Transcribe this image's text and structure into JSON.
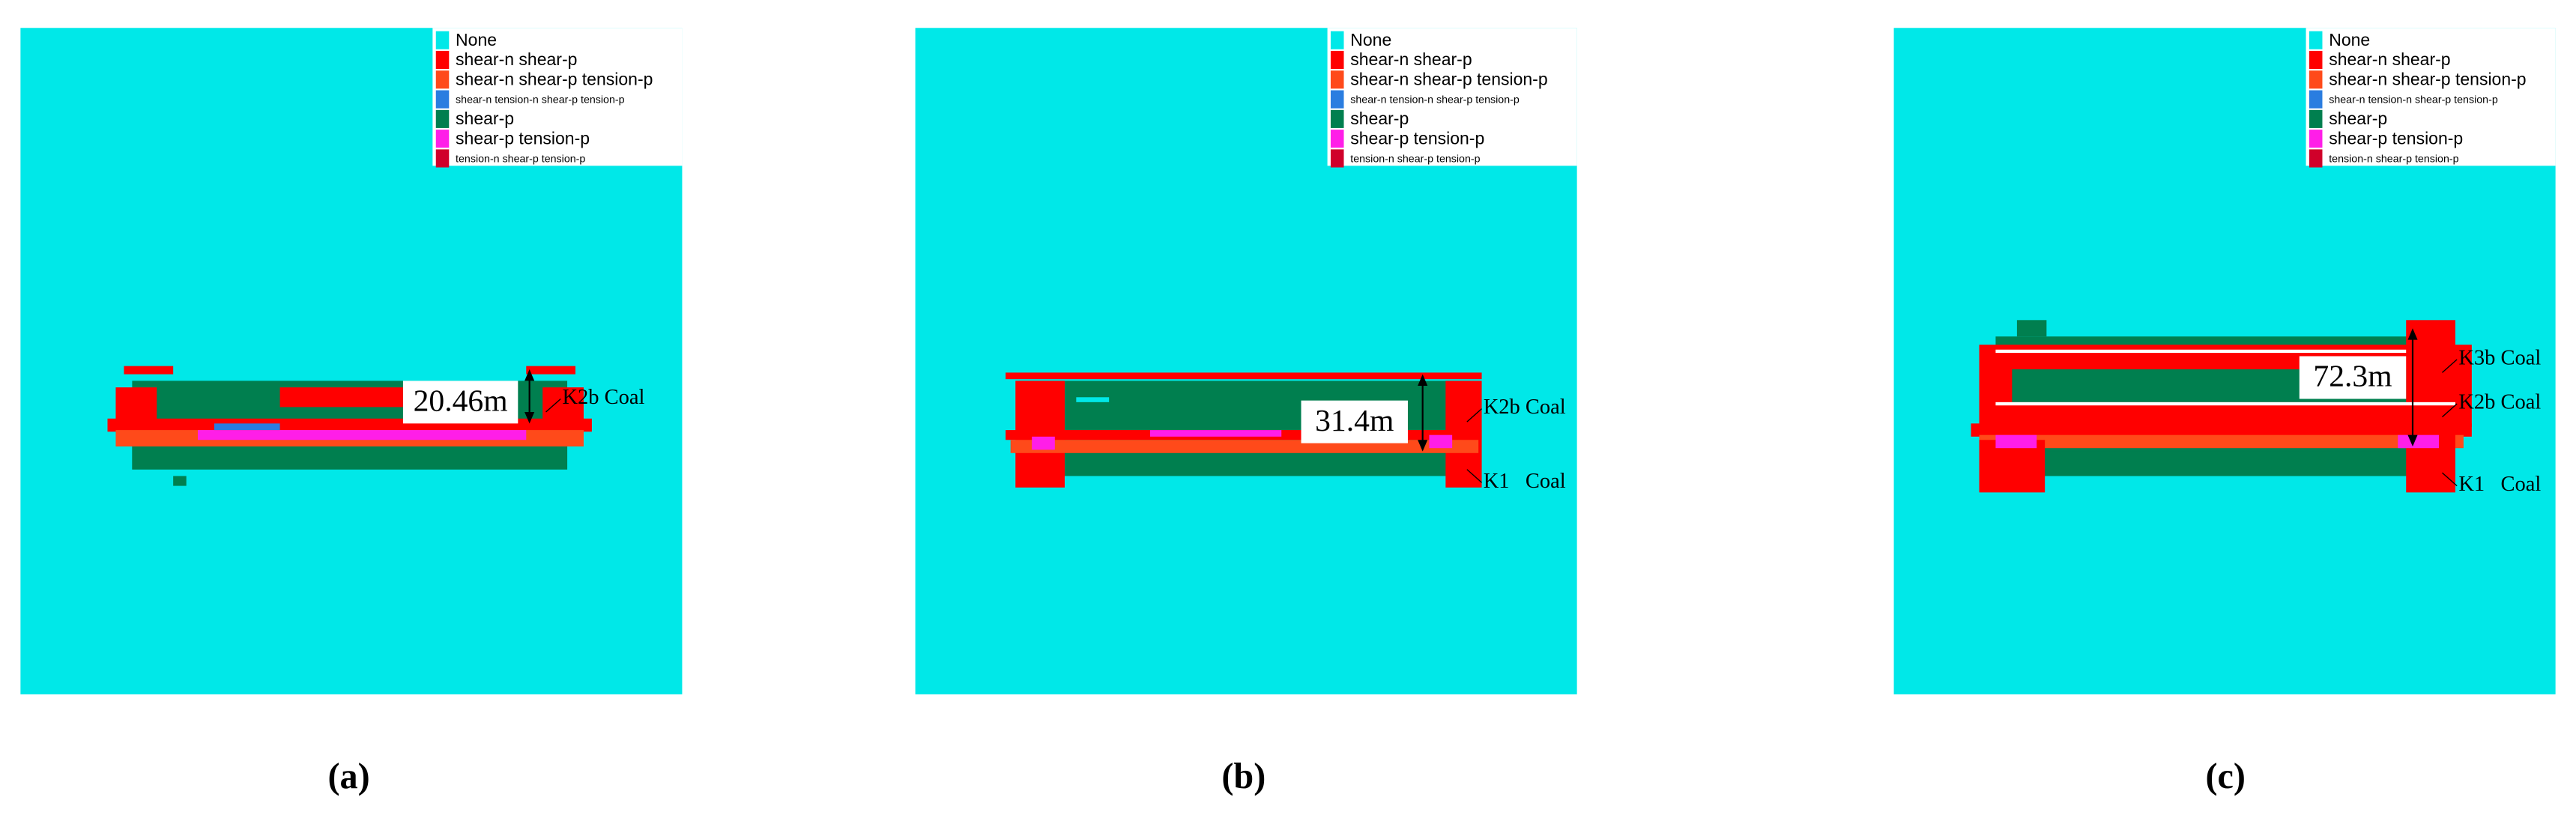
{
  "legend": [
    {
      "label": "None",
      "color": "#00e8e8"
    },
    {
      "label": "shear-n shear-p",
      "color": "#ff0000"
    },
    {
      "label": "shear-n shear-p tension-p",
      "color": "#ff4a1a"
    },
    {
      "label": "shear-n tension-n shear-p tension-p",
      "color": "#2a7de0"
    },
    {
      "label": "shear-p",
      "color": "#007f4f"
    },
    {
      "label": "shear-p tension-p",
      "color": "#ff1ee8"
    },
    {
      "label": "tension-n shear-p tension-p",
      "color": "#d0002a"
    }
  ],
  "panels": [
    {
      "label": "(a)",
      "thickness": "20.46m",
      "seams": [
        "K2b Coal"
      ]
    },
    {
      "label": "(b)",
      "thickness": "31.4m",
      "seams": [
        "K2b Coal",
        "K1   Coal"
      ]
    },
    {
      "label": "(c)",
      "thickness": "72.3m",
      "seams": [
        "K3b Coal",
        "K2b Coal",
        "K1   Coal"
      ]
    }
  ]
}
